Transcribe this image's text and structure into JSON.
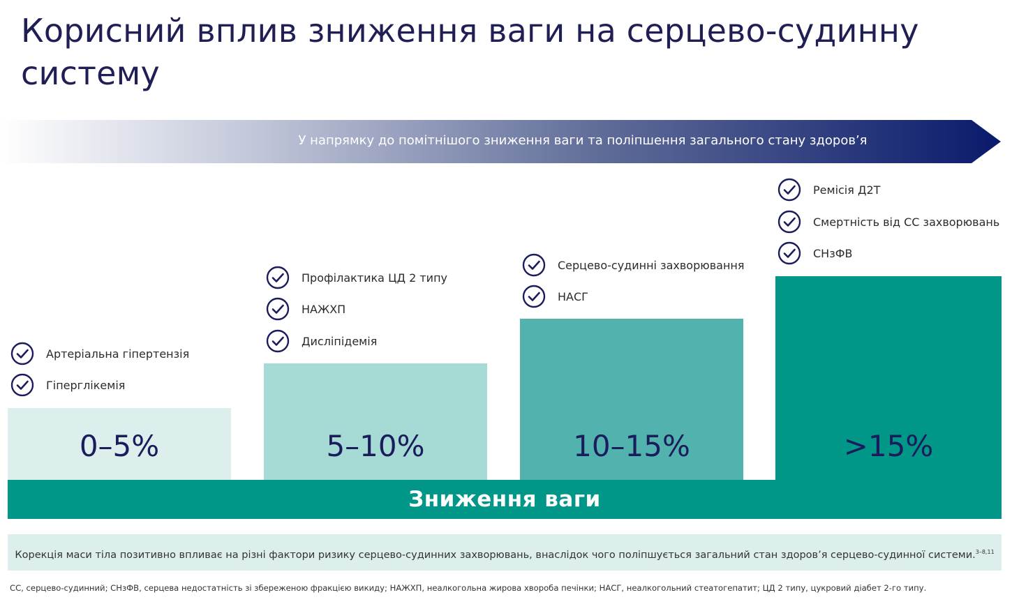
{
  "title": "Корисний вплив зниження ваги на серцево-судинну систему",
  "arrow_text": "У напрямку до помітнішого зниження ваги та поліпшення загального стану здоров’я",
  "base_label": "Зниження ваги",
  "columns": [
    {
      "range": "0–5%",
      "color": "#dcefed",
      "benefits": [
        "Артеріальна гіпертензія",
        "Гіперглікемія"
      ]
    },
    {
      "range": "5–10%",
      "color": "#a6dad5",
      "benefits": [
        "Профілактика ЦД 2 типу",
        "НАЖХП",
        "Дисліпідемія"
      ]
    },
    {
      "range": "10–15%",
      "color": "#52b3ae",
      "benefits": [
        "Серцево-судинні захворювання",
        "НАСГ"
      ]
    },
    {
      "range": ">15%",
      "color": "#009688",
      "benefits": [
        "Ремісія Д2Т",
        "Смертність від СС захворювань",
        "СНзФВ"
      ]
    }
  ],
  "summary": {
    "text": "Корекція маси тіла позитивно впливає на різні фактори ризику серцево-судинних захворювань, внаслідок чого поліпшується загальний стан здоров’я серцево-судинної системи.",
    "refs": "3–8,11"
  },
  "footnote": "СС, серцево-судинний; СНзФВ, серцева недостатність зі збереженою фракцією викиду; НАЖХП, неалкогольна жирова хвороба печінки; НАСГ, неалкогольний стеатогепатит; ЦД 2 типу, цукровий діабет 2-го типу.",
  "colors": {
    "title": "#201f55",
    "arrow_start": "#ffffff",
    "arrow_end": "#0a1a6b",
    "base": "#009688",
    "check": "#1a1c5c"
  },
  "icons": {
    "benefit": "check-circle-icon"
  }
}
